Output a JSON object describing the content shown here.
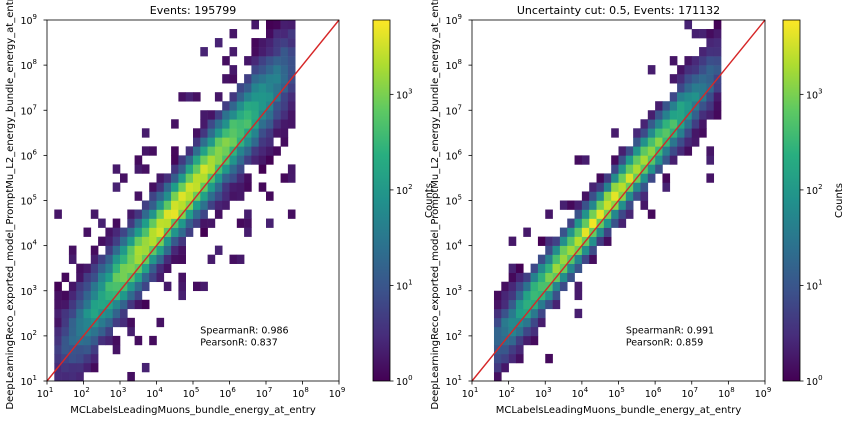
{
  "chart_data": [
    {
      "type": "heatmap",
      "title": "Events: 195799",
      "xlabel": "MCLabelsLeadingMuons_bundle_energy_at_entry",
      "ylabel": "DeepLearningReco_exported_model_PromptMu_L2_energy_bundle_energy_at_entry",
      "x_scale": "log",
      "y_scale": "log",
      "xlim": [
        10,
        1000000000
      ],
      "ylim": [
        10,
        1000000000
      ],
      "x_tick_exponents": [
        1,
        2,
        3,
        4,
        5,
        6,
        7,
        8,
        9
      ],
      "y_tick_exponents": [
        1,
        2,
        3,
        4,
        5,
        6,
        7,
        8,
        9
      ],
      "colorbar": {
        "label": "Counts",
        "scale": "log",
        "colormap": "viridis",
        "range": [
          1,
          6000
        ],
        "tick_exponents": [
          0,
          1,
          2,
          3
        ]
      },
      "reference_line": {
        "from": [
          10,
          10
        ],
        "to": [
          1000000000,
          1000000000
        ],
        "color": "#d62728"
      },
      "annotations": [
        "SpearmanR: 0.986",
        "PearsonR: 0.837"
      ],
      "band": {
        "x_log_range": [
          1.3,
          7.9
        ],
        "y_offset_log": 0.3,
        "width_log": 0.55,
        "outlier_fraction": 0.045
      }
    },
    {
      "type": "heatmap",
      "title": "Uncertainty cut: 0.5, Events: 171132",
      "xlabel": "MCLabelsLeadingMuons_bundle_energy_at_entry",
      "ylabel": "DeepLearningReco_exported_model_PromptMu_L2_energy_bundle_energy_at_entry",
      "x_scale": "log",
      "y_scale": "log",
      "xlim": [
        10,
        1000000000
      ],
      "ylim": [
        10,
        1000000000
      ],
      "x_tick_exponents": [
        1,
        2,
        3,
        4,
        5,
        6,
        7,
        8,
        9
      ],
      "y_tick_exponents": [
        1,
        2,
        3,
        4,
        5,
        6,
        7,
        8,
        9
      ],
      "colorbar": {
        "label": "Counts",
        "scale": "log",
        "colormap": "viridis",
        "range": [
          1,
          6000
        ],
        "tick_exponents": [
          0,
          1,
          2,
          3
        ]
      },
      "reference_line": {
        "from": [
          10,
          10
        ],
        "to": [
          1000000000,
          1000000000
        ],
        "color": "#d62728"
      },
      "annotations": [
        "SpearmanR: 0.991",
        "PearsonR: 0.859"
      ],
      "band": {
        "x_log_range": [
          1.7,
          7.9
        ],
        "y_offset_log": 0.2,
        "width_log": 0.4,
        "outlier_fraction": 0.015
      }
    }
  ]
}
